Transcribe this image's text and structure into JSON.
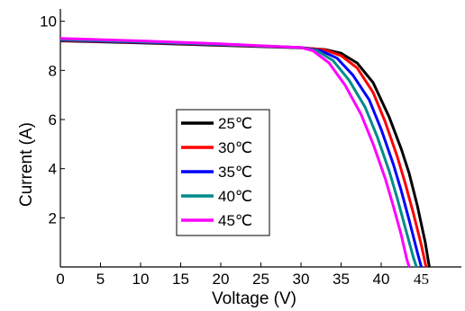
{
  "chart_data": {
    "type": "line",
    "title": "",
    "xlabel": "Voltage (V)",
    "ylabel": "Current (A)",
    "xlim": [
      0,
      50
    ],
    "ylim": [
      0,
      10.5
    ],
    "x_ticks": [
      "0",
      "5",
      "10",
      "15",
      "20",
      "25",
      "30",
      "35",
      "40",
      "45"
    ],
    "y_ticks": [
      "2",
      "4",
      "6",
      "8",
      "10"
    ],
    "grid": false,
    "legend_position": "center-left",
    "series": [
      {
        "name": "25℃",
        "color": "#000000",
        "points": [
          [
            0,
            9.2
          ],
          [
            10,
            9.12
          ],
          [
            20,
            9.02
          ],
          [
            30,
            8.92
          ],
          [
            33,
            8.85
          ],
          [
            35,
            8.7
          ],
          [
            37,
            8.3
          ],
          [
            39,
            7.5
          ],
          [
            41,
            6.1
          ],
          [
            42.5,
            4.8
          ],
          [
            43.5,
            3.8
          ],
          [
            44.5,
            2.5
          ],
          [
            45.5,
            1.0
          ],
          [
            46,
            0
          ]
        ]
      },
      {
        "name": "30℃",
        "color": "#ff0000",
        "points": [
          [
            0,
            9.22
          ],
          [
            10,
            9.14
          ],
          [
            20,
            9.04
          ],
          [
            30,
            8.93
          ],
          [
            33,
            8.83
          ],
          [
            35,
            8.6
          ],
          [
            37,
            8.1
          ],
          [
            39,
            7.1
          ],
          [
            40.5,
            5.9
          ],
          [
            42,
            4.5
          ],
          [
            43,
            3.4
          ],
          [
            44,
            2.2
          ],
          [
            45,
            0.9
          ],
          [
            45.6,
            0
          ]
        ]
      },
      {
        "name": "35℃",
        "color": "#0000ff",
        "points": [
          [
            0,
            9.24
          ],
          [
            10,
            9.15
          ],
          [
            20,
            9.05
          ],
          [
            30,
            8.93
          ],
          [
            32.5,
            8.8
          ],
          [
            34.5,
            8.5
          ],
          [
            36.5,
            7.8
          ],
          [
            38.5,
            6.8
          ],
          [
            40,
            5.6
          ],
          [
            41.5,
            4.2
          ],
          [
            42.5,
            3.1
          ],
          [
            43.5,
            1.9
          ],
          [
            44.5,
            0.6
          ],
          [
            45,
            0
          ]
        ]
      },
      {
        "name": "40℃",
        "color": "#008b8b",
        "points": [
          [
            0,
            9.26
          ],
          [
            10,
            9.17
          ],
          [
            20,
            9.06
          ],
          [
            30,
            8.93
          ],
          [
            32,
            8.8
          ],
          [
            34,
            8.4
          ],
          [
            36,
            7.6
          ],
          [
            38,
            6.5
          ],
          [
            39.5,
            5.3
          ],
          [
            41,
            3.9
          ],
          [
            42,
            2.8
          ],
          [
            43,
            1.6
          ],
          [
            44,
            0.4
          ],
          [
            44.4,
            0
          ]
        ]
      },
      {
        "name": "45℃",
        "color": "#ff00ff",
        "points": [
          [
            0,
            9.3
          ],
          [
            10,
            9.2
          ],
          [
            20,
            9.08
          ],
          [
            30,
            8.93
          ],
          [
            31.5,
            8.8
          ],
          [
            33.5,
            8.3
          ],
          [
            35.5,
            7.4
          ],
          [
            37.5,
            6.2
          ],
          [
            39,
            5.0
          ],
          [
            40.5,
            3.6
          ],
          [
            41.5,
            2.5
          ],
          [
            42.5,
            1.3
          ],
          [
            43.2,
            0.3
          ],
          [
            43.5,
            0
          ]
        ]
      }
    ]
  }
}
